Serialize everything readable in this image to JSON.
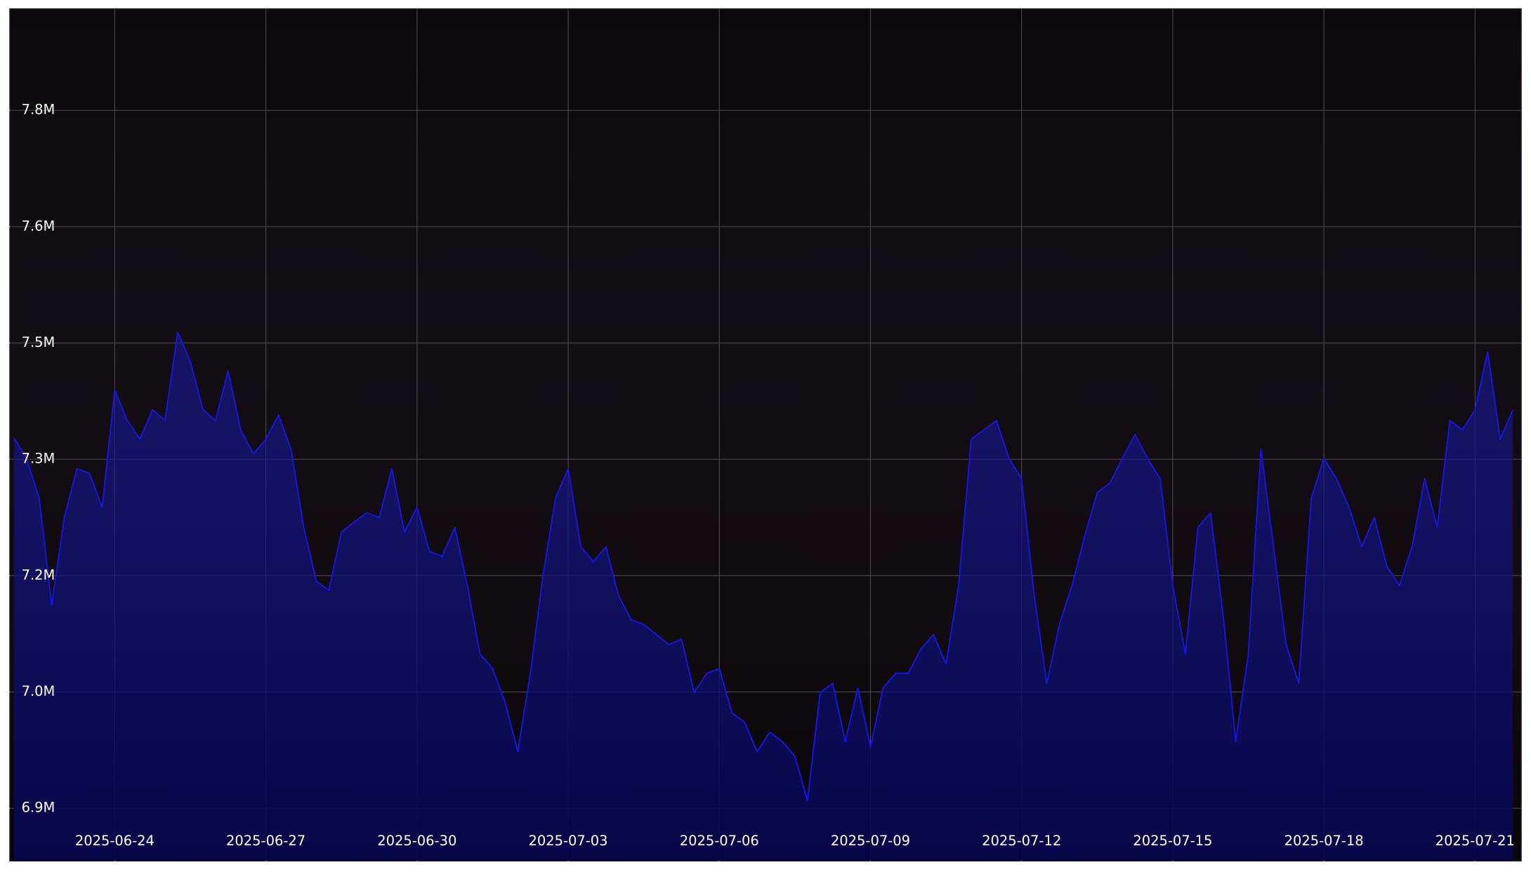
{
  "chart_data": {
    "type": "line",
    "x": [
      "2025-06-22T00:00",
      "2025-06-22T06:00",
      "2025-06-22T12:00",
      "2025-06-22T18:00",
      "2025-06-23T00:00",
      "2025-06-23T06:00",
      "2025-06-23T12:00",
      "2025-06-23T18:00",
      "2025-06-24T00:00",
      "2025-06-24T06:00",
      "2025-06-24T12:00",
      "2025-06-24T18:00",
      "2025-06-25T00:00",
      "2025-06-25T06:00",
      "2025-06-25T12:00",
      "2025-06-25T18:00",
      "2025-06-26T00:00",
      "2025-06-26T06:00",
      "2025-06-26T12:00",
      "2025-06-26T18:00",
      "2025-06-27T00:00",
      "2025-06-27T06:00",
      "2025-06-27T12:00",
      "2025-06-27T18:00",
      "2025-06-28T00:00",
      "2025-06-28T06:00",
      "2025-06-28T12:00",
      "2025-06-28T18:00",
      "2025-06-29T00:00",
      "2025-06-29T06:00",
      "2025-06-29T12:00",
      "2025-06-29T18:00",
      "2025-06-30T00:00",
      "2025-06-30T06:00",
      "2025-06-30T12:00",
      "2025-06-30T18:00",
      "2025-07-01T00:00",
      "2025-07-01T06:00",
      "2025-07-01T12:00",
      "2025-07-01T18:00",
      "2025-07-02T00:00",
      "2025-07-02T06:00",
      "2025-07-02T12:00",
      "2025-07-02T18:00",
      "2025-07-03T00:00",
      "2025-07-03T06:00",
      "2025-07-03T12:00",
      "2025-07-03T18:00",
      "2025-07-04T00:00",
      "2025-07-04T06:00",
      "2025-07-04T12:00",
      "2025-07-04T18:00",
      "2025-07-05T00:00",
      "2025-07-05T06:00",
      "2025-07-05T12:00",
      "2025-07-05T18:00",
      "2025-07-06T00:00",
      "2025-07-06T06:00",
      "2025-07-06T12:00",
      "2025-07-06T18:00",
      "2025-07-07T00:00",
      "2025-07-07T06:00",
      "2025-07-07T12:00",
      "2025-07-07T18:00",
      "2025-07-08T00:00",
      "2025-07-08T06:00",
      "2025-07-08T12:00",
      "2025-07-08T18:00",
      "2025-07-09T00:00",
      "2025-07-09T06:00",
      "2025-07-09T12:00",
      "2025-07-09T18:00",
      "2025-07-10T00:00",
      "2025-07-10T06:00",
      "2025-07-10T12:00",
      "2025-07-10T18:00",
      "2025-07-11T00:00",
      "2025-07-11T06:00",
      "2025-07-11T12:00",
      "2025-07-11T18:00",
      "2025-07-12T00:00",
      "2025-07-12T06:00",
      "2025-07-12T12:00",
      "2025-07-12T18:00",
      "2025-07-13T00:00",
      "2025-07-13T06:00",
      "2025-07-13T12:00",
      "2025-07-13T18:00",
      "2025-07-14T00:00",
      "2025-07-14T06:00",
      "2025-07-14T12:00",
      "2025-07-14T18:00",
      "2025-07-15T00:00",
      "2025-07-15T06:00",
      "2025-07-15T12:00",
      "2025-07-15T18:00",
      "2025-07-16T00:00",
      "2025-07-16T06:00",
      "2025-07-16T12:00",
      "2025-07-16T18:00",
      "2025-07-17T00:00",
      "2025-07-17T06:00",
      "2025-07-17T12:00",
      "2025-07-17T18:00",
      "2025-07-18T00:00",
      "2025-07-18T06:00",
      "2025-07-18T12:00",
      "2025-07-18T18:00",
      "2025-07-19T00:00",
      "2025-07-19T06:00",
      "2025-07-19T12:00",
      "2025-07-19T18:00",
      "2025-07-20T00:00",
      "2025-07-20T06:00",
      "2025-07-20T12:00",
      "2025-07-20T18:00",
      "2025-07-21T00:00",
      "2025-07-21T06:00",
      "2025-07-21T12:00",
      "2025-07-21T18:00"
    ],
    "series": [
      {
        "color": "#1414e6",
        "fill": true,
        "values": [
          7378000,
          7351000,
          7300000,
          7162000,
          7275000,
          7338000,
          7332000,
          7288000,
          7439000,
          7400000,
          7376000,
          7414000,
          7400000,
          7514000,
          7476000,
          7414000,
          7400000,
          7464000,
          7388000,
          7357000,
          7376000,
          7407000,
          7363000,
          7262000,
          7193000,
          7181000,
          7256000,
          7269000,
          7281000,
          7275000,
          7338000,
          7256000,
          7288000,
          7231000,
          7225000,
          7262000,
          7187000,
          7099000,
          7080000,
          7036000,
          6973000,
          7074000,
          7200000,
          7300000,
          7338000,
          7237000,
          7218000,
          7237000,
          7174000,
          7143000,
          7137000,
          7124000,
          7111000,
          7118000,
          7049000,
          7074000,
          7080000,
          7023000,
          7011000,
          6973000,
          6998000,
          6986000,
          6967000,
          6910000,
          7049000,
          7061000,
          6986000,
          7055000,
          6979000,
          7055000,
          7074000,
          7074000,
          7105000,
          7124000,
          7086000,
          7187000,
          7376000,
          7388000,
          7400000,
          7351000,
          7325000,
          7174000,
          7061000,
          7137000,
          7187000,
          7250000,
          7307000,
          7319000,
          7351000,
          7382000,
          7351000,
          7325000,
          7187000,
          7099000,
          7262000,
          7281000,
          7149000,
          6986000,
          7099000,
          7363000,
          7237000,
          7111000,
          7061000,
          7300000,
          7351000,
          7325000,
          7288000,
          7237000,
          7275000,
          7212000,
          7187000,
          7237000,
          7325000,
          7262000,
          7400000,
          7388000,
          7414000,
          7489000,
          7376000,
          7414000
        ]
      }
    ],
    "xlim": [
      "2025-06-21T22:00",
      "2025-07-21T22:00"
    ],
    "xticks": [
      "2025-06-24",
      "2025-06-27",
      "2025-06-30",
      "2025-07-03",
      "2025-07-06",
      "2025-07-09",
      "2025-07-12",
      "2025-07-15",
      "2025-07-18",
      "2025-07-21"
    ],
    "ylim": [
      6832000,
      7931000
    ],
    "yticks": [
      {
        "value": 6900000,
        "label": "6.9M"
      },
      {
        "value": 7050000,
        "label": "7.0M"
      },
      {
        "value": 7200000,
        "label": "7.2M"
      },
      {
        "value": 7350000,
        "label": "7.3M"
      },
      {
        "value": 7500000,
        "label": "7.5M"
      },
      {
        "value": 7650000,
        "label": "7.6M"
      },
      {
        "value": 7800000,
        "label": "7.8M"
      }
    ],
    "grid": true
  }
}
